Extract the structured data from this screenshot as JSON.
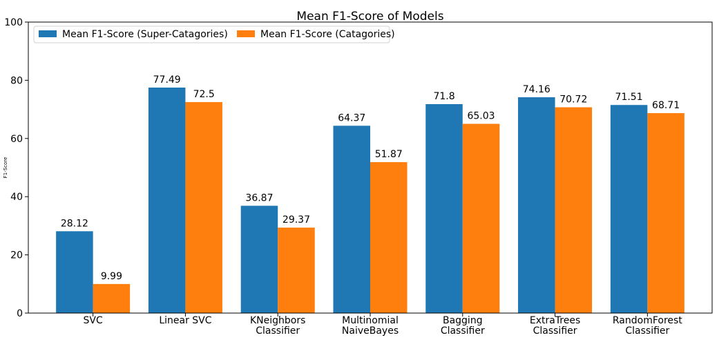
{
  "chart_data": {
    "type": "bar",
    "title": "Mean F1-Score of Models",
    "xlabel": "",
    "ylabel": "F1-Score",
    "ylim": [
      0,
      100
    ],
    "yticks": [
      0,
      20,
      40,
      60,
      80,
      100
    ],
    "grid": false,
    "legend_position": "top-left",
    "categories": [
      [
        "SVC"
      ],
      [
        "Linear SVC"
      ],
      [
        "KNeighbors",
        "Classifier"
      ],
      [
        "Multinomial",
        "NaiveBayes"
      ],
      [
        "Bagging",
        "Classifier"
      ],
      [
        "ExtraTrees",
        "Classifier"
      ],
      [
        "RandomForest",
        "Classifier"
      ]
    ],
    "series": [
      {
        "name": "Mean F1-Score (Super-Catagories)",
        "color": "#1f77b4",
        "values": [
          28.12,
          77.49,
          36.87,
          64.37,
          71.8,
          74.16,
          71.51
        ],
        "labels": [
          "28.12",
          "77.49",
          "36.87",
          "64.37",
          "71.8",
          "74.16",
          "71.51"
        ]
      },
      {
        "name": "Mean F1-Score (Catagories)",
        "color": "#ff7f0e",
        "values": [
          9.99,
          72.5,
          29.37,
          51.87,
          65.03,
          70.72,
          68.71
        ],
        "labels": [
          "9.99",
          "72.5",
          "29.37",
          "51.87",
          "65.03",
          "70.72",
          "68.71"
        ]
      }
    ]
  }
}
